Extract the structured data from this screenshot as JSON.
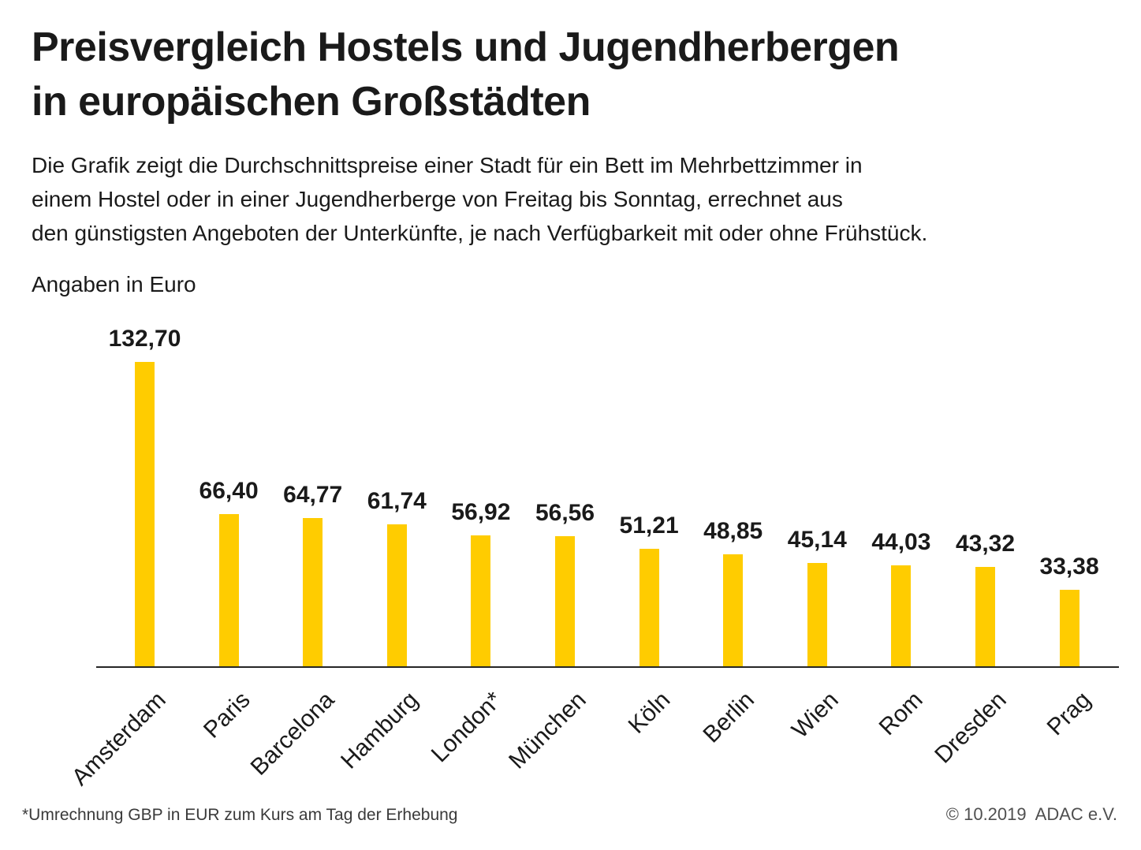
{
  "header": {
    "title_lines": [
      "Preisvergleich Hostels und Jugendherbergen",
      "in europäischen Großstädten"
    ],
    "description_lines": [
      "Die Grafik zeigt die Durchschnittspreise einer Stadt für ein Bett im Mehrbettzimmer in",
      "einem Hostel oder in einer Jugendherberge von Freitag bis Sonntag, errechnet aus",
      "den günstigsten Angeboten der Unterkünfte, je nach Verfügbarkeit mit oder ohne Frühstück."
    ],
    "units_label": "Angaben in Euro"
  },
  "chart_data": {
    "type": "bar",
    "title": "Preisvergleich Hostels und Jugendherbergen in europäischen Großstädten",
    "categories": [
      "Amsterdam",
      "Paris",
      "Barcelona",
      "Hamburg",
      "London*",
      "München",
      "Köln",
      "Berlin",
      "Wien",
      "Rom",
      "Dresden",
      "Prag"
    ],
    "values": [
      132.7,
      66.4,
      64.77,
      61.74,
      56.92,
      56.56,
      51.21,
      48.85,
      45.14,
      44.03,
      43.32,
      33.38
    ],
    "value_labels": [
      "132,70",
      "66,40",
      "64,77",
      "61,74",
      "56,92",
      "56,56",
      "51,21",
      "48,85",
      "45,14",
      "44,03",
      "43,32",
      "33,38"
    ],
    "xlabel": "",
    "ylabel": "Angaben in Euro",
    "ylim": [
      0,
      140
    ],
    "grid": false,
    "legend": false,
    "bar_color": "#FFCC00"
  },
  "footer": {
    "footnote": "*Umrechnung GBP in EUR zum Kurs am Tag der Erhebung",
    "copyright": "© 10.2019  ADAC e.V."
  },
  "colors": {
    "bar": "#FFCC00",
    "text": "#1A1A1A",
    "axis": "#262626"
  }
}
